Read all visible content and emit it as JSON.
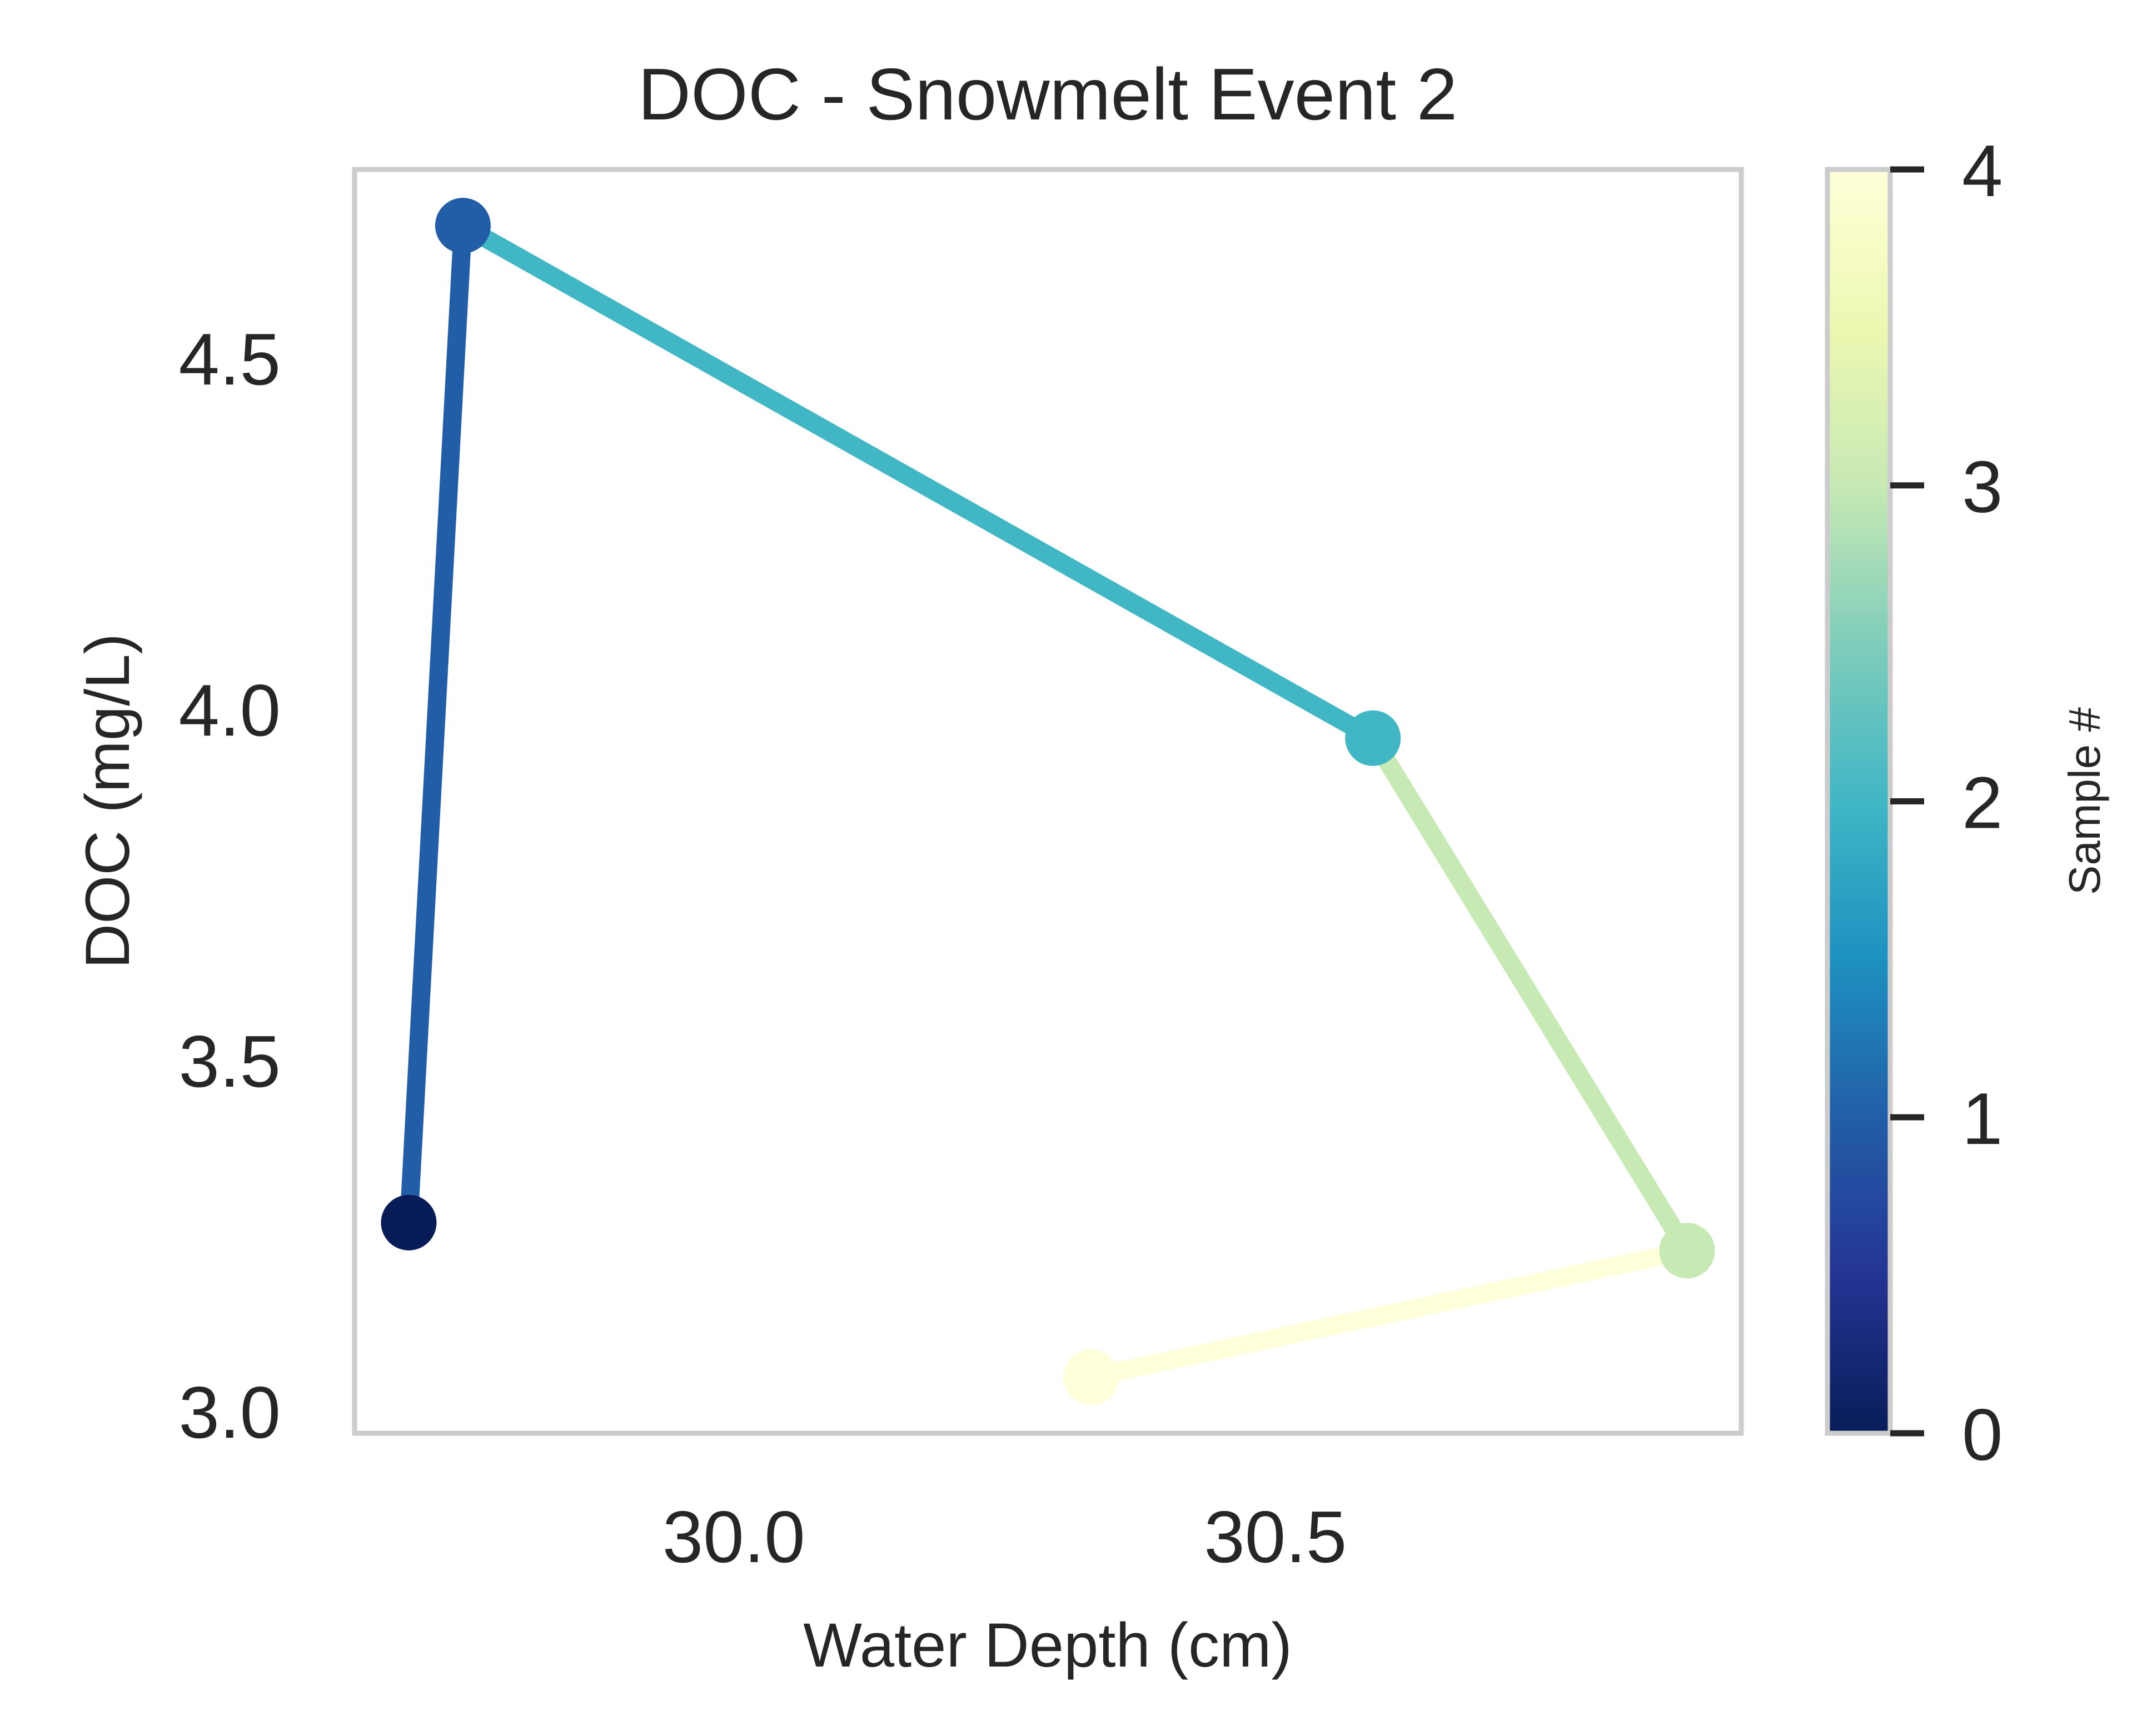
{
  "chart_data": {
    "type": "line",
    "title": "DOC - Snowmelt Event 2",
    "xlabel": "Water Depth (cm)",
    "ylabel": "DOC (mg/L)",
    "xlim": [
      29.65,
      30.93
    ],
    "ylim": [
      2.97,
      4.77
    ],
    "xticks": [
      30.0,
      30.5
    ],
    "xtick_labels": [
      "30.0",
      "30.5"
    ],
    "yticks": [
      3.0,
      3.5,
      4.0,
      4.5
    ],
    "ytick_labels": [
      "3.0",
      "3.5",
      "4.0",
      "4.5"
    ],
    "grid": false,
    "series": [
      {
        "points": [
          {
            "sample": 0,
            "x": 29.7,
            "y": 3.27,
            "color": "#081d58"
          },
          {
            "sample": 1,
            "x": 29.75,
            "y": 4.69,
            "color": "#225ea8"
          },
          {
            "sample": 2,
            "x": 30.59,
            "y": 3.96,
            "color": "#41b6c4"
          },
          {
            "sample": 3,
            "x": 30.88,
            "y": 3.23,
            "color": "#c7e9b4"
          },
          {
            "sample": 4,
            "x": 30.33,
            "y": 3.05,
            "color": "#ffffd9"
          }
        ]
      }
    ],
    "colorbar": {
      "label": "Sample #",
      "colormap": "YlGnBu_r",
      "range": [
        0,
        4
      ],
      "ticks": [
        0,
        1,
        2,
        3,
        4
      ],
      "tick_labels": [
        "0",
        "1",
        "2",
        "3",
        "4"
      ],
      "stops": [
        "#081d58",
        "#253494",
        "#225ea8",
        "#1d91c0",
        "#41b6c4",
        "#7fcdbb",
        "#c7e9b4",
        "#edf8b1",
        "#ffffd9"
      ]
    }
  }
}
